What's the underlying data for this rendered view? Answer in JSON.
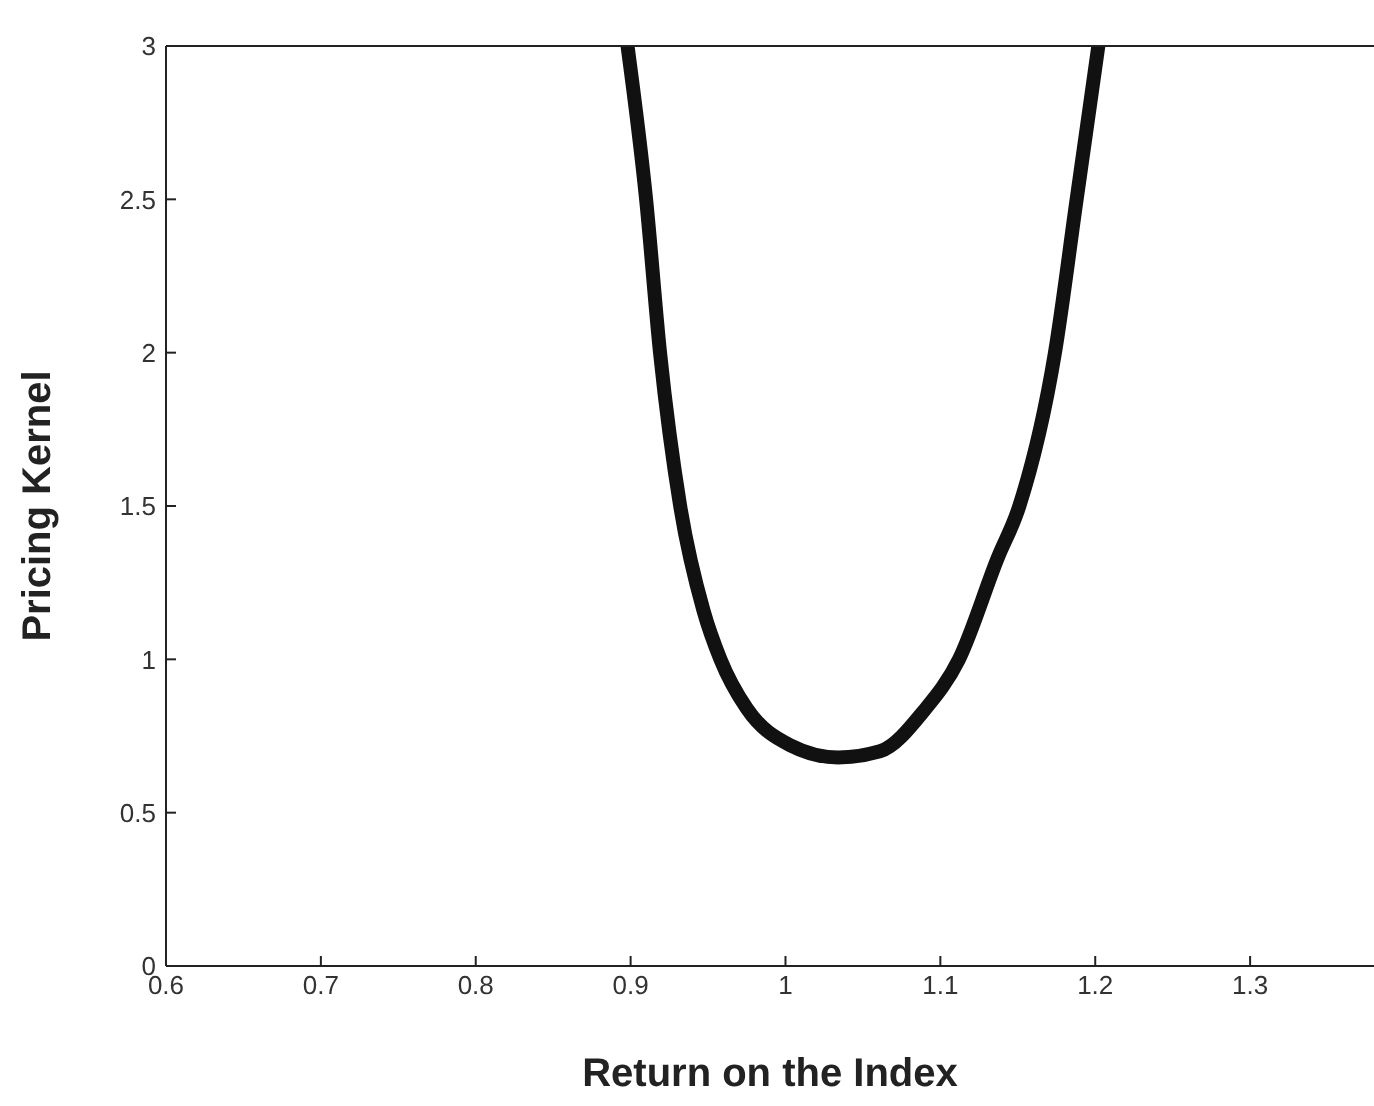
{
  "chart_data": {
    "type": "line",
    "xlabel": "Return on the Index",
    "ylabel": "Pricing Kernel",
    "series": [
      {
        "color": "#111111",
        "x": [
          0.898,
          0.91,
          0.919,
          0.932,
          0.947,
          0.958,
          0.975,
          1.003,
          1.034,
          1.061,
          1.089,
          1.112,
          1.137,
          1.151,
          1.174,
          1.188,
          1.202
        ],
        "values": [
          3,
          2.5,
          2.0,
          1.5,
          1.16,
          1.0,
          0.84,
          0.72,
          0.68,
          0.7,
          0.83,
          1.0,
          1.33,
          1.5,
          2.0,
          2.5,
          3
        ]
      }
    ],
    "xlim": [
      0.6,
      1.38
    ],
    "xticks": [
      0.6,
      0.7,
      0.8,
      0.9,
      1,
      1.1,
      1.2,
      1.3
    ],
    "ylim": [
      0,
      3
    ],
    "yticks": [
      0,
      0.5,
      1,
      1.5,
      2,
      2.5,
      3
    ],
    "grid": false,
    "legend": false,
    "marker": "none",
    "line_style": "solid"
  }
}
